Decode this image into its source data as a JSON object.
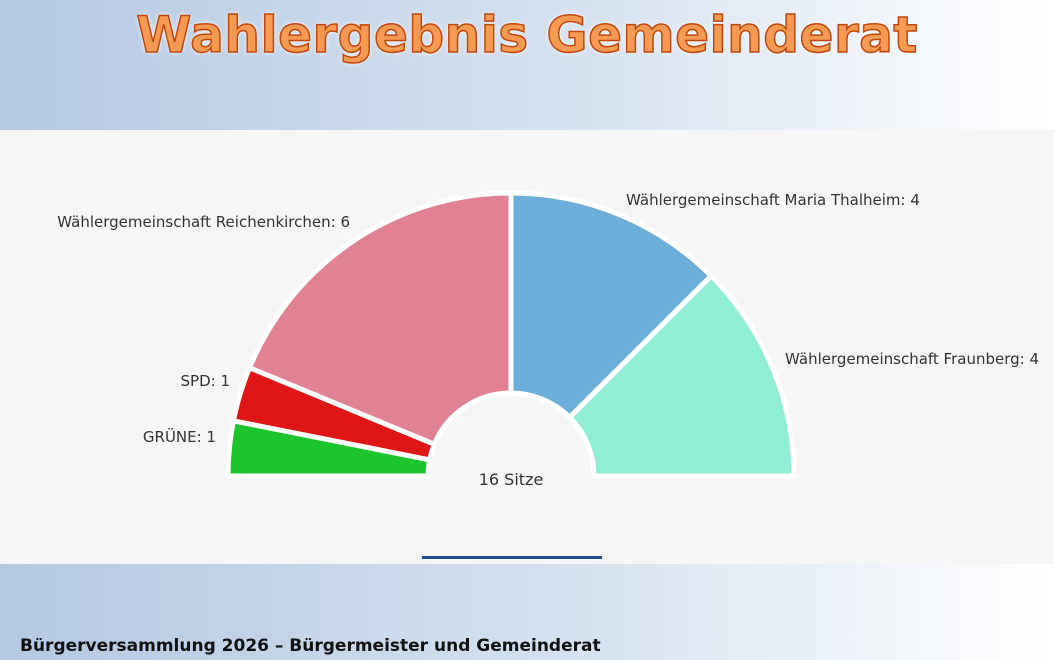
{
  "page": {
    "title": "Wahlergebnis Gemeinderat",
    "footer": "Bürgerversammlung 2026 – Bürgermeister und Gemeinderat"
  },
  "chart_data": {
    "type": "pie",
    "subtype": "parliament-half-donut",
    "center_label": "16 Sitze",
    "total_seats": 16,
    "slices": [
      {
        "name": "GRÜNE",
        "label": "GRÜNE: 1",
        "value": 1,
        "color": "#1cc52b"
      },
      {
        "name": "SPD",
        "label": "SPD: 1",
        "value": 1,
        "color": "#e01515"
      },
      {
        "name": "Wählergemeinschaft Reichenkirchen",
        "label": "Wählergemeinschaft Reichenkirchen: 6",
        "value": 6,
        "color": "#e08294"
      },
      {
        "name": "Wählergemeinschaft Maria Thalheim",
        "label": "Wählergemeinschaft Maria Thalheim: 4",
        "value": 4,
        "color": "#6aaed9"
      },
      {
        "name": "Wählergemeinschaft Fraunberg",
        "label": "Wählergemeinschaft Fraunberg: 4",
        "value": 4,
        "color": "#90eed5"
      }
    ]
  }
}
